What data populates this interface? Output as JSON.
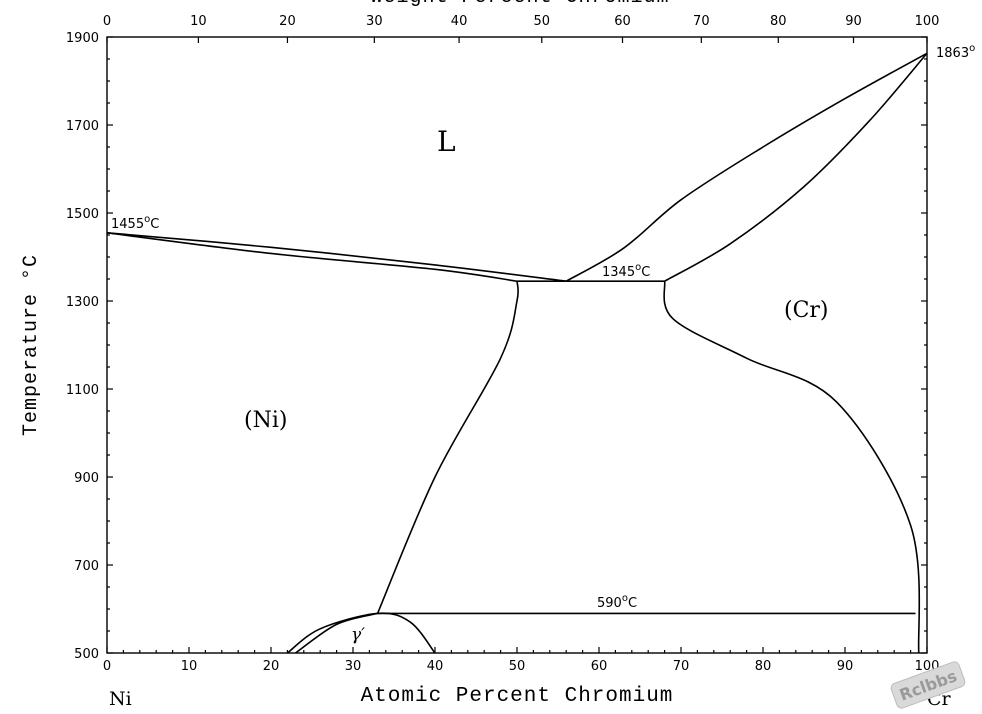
{
  "diagram": {
    "top_axis_title": "Weight Percent Chromium",
    "bottom_axis_title": "Atomic Percent Chromium",
    "y_axis_title": "Temperature °C",
    "left_element": "Ni",
    "right_element": "Cr",
    "x_range": [
      0,
      100
    ],
    "y_range": [
      500,
      1900
    ],
    "bottom_ticks": [
      "0",
      "10",
      "20",
      "30",
      "40",
      "50",
      "60",
      "70",
      "80",
      "90",
      "100"
    ],
    "top_ticks": [
      {
        "label": "0",
        "wt": 0
      },
      {
        "label": "10",
        "wt": 10
      },
      {
        "label": "20",
        "wt": 20
      },
      {
        "label": "30",
        "wt": 30
      },
      {
        "label": "40",
        "wt": 40
      },
      {
        "label": "50",
        "wt": 50
      },
      {
        "label": "60",
        "wt": 60
      },
      {
        "label": "70",
        "wt": 70
      },
      {
        "label": "80",
        "wt": 80
      },
      {
        "label": "90",
        "wt": 90
      },
      {
        "label": "100",
        "wt": 100
      }
    ],
    "y_ticks": [
      "500",
      "700",
      "900",
      "1100",
      "1300",
      "1500",
      "1700",
      "1900"
    ],
    "regions": {
      "liquid": "L",
      "ni_solid": "(Ni)",
      "cr_solid": "(Cr)",
      "gamma_prime": "γ′"
    },
    "annotations": {
      "ni_melt": "1455°C",
      "cr_melt": "1863°",
      "eutectic": "1345°C",
      "eutectoid": "590°C"
    },
    "watermark": "Rclbbs"
  },
  "chart_data": {
    "type": "phase-diagram",
    "x_unit": "Atomic Percent Chromium",
    "y_unit": "Temperature °C",
    "boundaries": [
      {
        "name": "liquidus-ni-side",
        "points": [
          [
            0,
            1455
          ],
          [
            20,
            1422
          ],
          [
            40,
            1382
          ],
          [
            56,
            1345
          ]
        ]
      },
      {
        "name": "solidus-ni-side",
        "points": [
          [
            0,
            1455
          ],
          [
            20,
            1408
          ],
          [
            40,
            1372
          ],
          [
            50,
            1345
          ]
        ]
      },
      {
        "name": "liquidus-cr-side",
        "points": [
          [
            56,
            1345
          ],
          [
            63,
            1420
          ],
          [
            70,
            1530
          ],
          [
            80,
            1650
          ],
          [
            90,
            1760
          ],
          [
            100,
            1863
          ]
        ]
      },
      {
        "name": "solidus-cr-side",
        "points": [
          [
            68,
            1345
          ],
          [
            76,
            1430
          ],
          [
            85,
            1560
          ],
          [
            93,
            1710
          ],
          [
            100,
            1863
          ]
        ]
      },
      {
        "name": "eutectic-line",
        "points": [
          [
            50,
            1345
          ],
          [
            68,
            1345
          ]
        ]
      },
      {
        "name": "ni-solvus",
        "points": [
          [
            50,
            1345
          ],
          [
            50,
            1300
          ],
          [
            48,
            1170
          ],
          [
            40,
            900
          ],
          [
            33,
            590
          ]
        ]
      },
      {
        "name": "cr-solvus",
        "points": [
          [
            68,
            1345
          ],
          [
            69,
            1260
          ],
          [
            78,
            1170
          ],
          [
            89,
            1070
          ],
          [
            98,
            790
          ],
          [
            99,
            500
          ]
        ]
      },
      {
        "name": "eutectoid-line",
        "points": [
          [
            33,
            590
          ],
          [
            98.6,
            590
          ]
        ]
      },
      {
        "name": "gamma-prime-dome",
        "points": [
          [
            22,
            500
          ],
          [
            26,
            555
          ],
          [
            33,
            590
          ],
          [
            37,
            570
          ],
          [
            40,
            500
          ]
        ]
      },
      {
        "name": "gamma-prime-inner",
        "points": [
          [
            23,
            500
          ],
          [
            28,
            565
          ],
          [
            33,
            590
          ]
        ]
      }
    ],
    "labels": [
      {
        "text": "L",
        "x": 41,
        "y": 1720
      },
      {
        "text": "(Ni)",
        "x": 19,
        "y": 1040
      },
      {
        "text": "(Cr)",
        "x": 85,
        "y": 1285
      },
      {
        "text": "γ′",
        "x": 31,
        "y": 535
      }
    ],
    "special_points": [
      {
        "label": "1455°C",
        "x": 0,
        "y": 1455
      },
      {
        "label": "1863°",
        "x": 100,
        "y": 1863
      },
      {
        "label": "1345°C",
        "x": 59,
        "y": 1345
      },
      {
        "label": "590°C",
        "x": 63,
        "y": 590
      }
    ]
  }
}
